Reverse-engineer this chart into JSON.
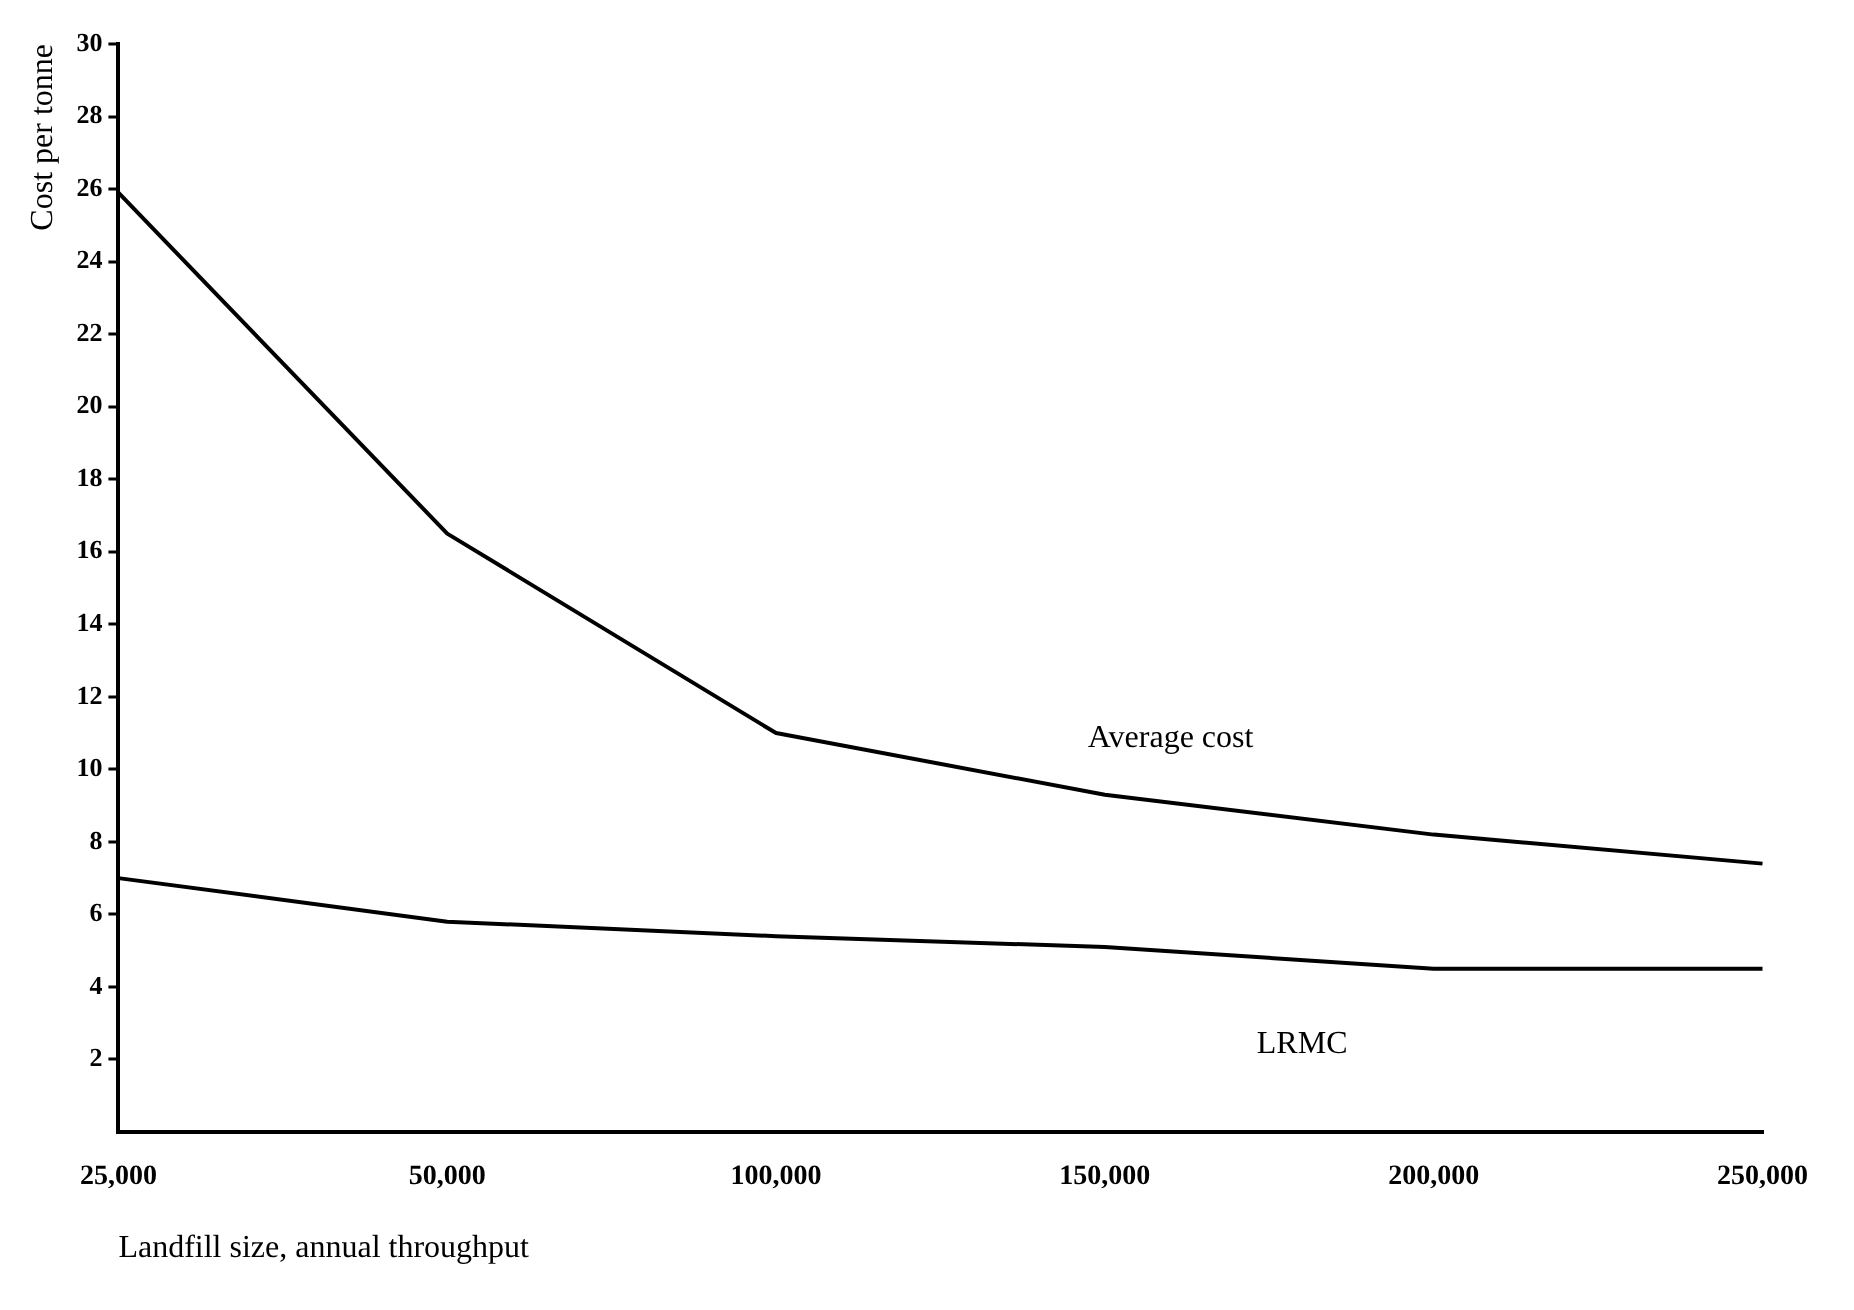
{
  "chart_data": {
    "type": "line",
    "xlabel": "Landfill size, annual throughput",
    "ylabel": "Cost per tonne",
    "categories": [
      "25,000",
      "50,000",
      "100,000",
      "150,000",
      "200,000",
      "250,000"
    ],
    "series": [
      {
        "name": "Average cost",
        "color": "#000000",
        "values": [
          25.9,
          16.5,
          11,
          9.3,
          8.2,
          7.4
        ]
      },
      {
        "name": "LRMC",
        "color": "#000000",
        "values": [
          7,
          5.8,
          5.4,
          5.1,
          4.5,
          4.5
        ]
      }
    ],
    "ylim": [
      0,
      30
    ],
    "yticks": [
      2,
      4,
      6,
      8,
      10,
      12,
      14,
      16,
      18,
      20,
      22,
      24,
      26,
      28,
      30
    ],
    "grid": false,
    "legend": false,
    "marker": "none",
    "line_style": "solid"
  }
}
